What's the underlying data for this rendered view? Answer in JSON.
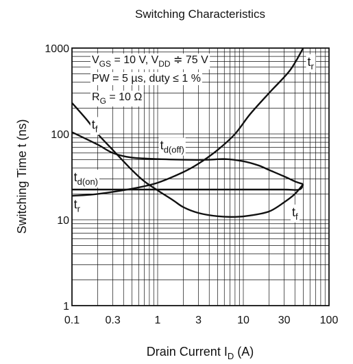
{
  "chart_data": {
    "type": "line",
    "title": "Switching Characteristics",
    "xlabel": {
      "main": "Drain Current  I",
      "sub": "D",
      "unit": "  (A)"
    },
    "ylabel": "Switching Time  t  (ns)",
    "x_scale": "log",
    "y_scale": "log",
    "xlim": [
      0.1,
      100
    ],
    "ylim": [
      1,
      1000
    ],
    "grid": true,
    "x_ticks": [
      0.1,
      0.3,
      1,
      3,
      10,
      30,
      100
    ],
    "x_tick_labels": [
      "0.1",
      "0.3",
      "1",
      "3",
      "10",
      "30",
      "100"
    ],
    "y_ticks": [
      1,
      10,
      100,
      1000
    ],
    "y_tick_labels": [
      "1",
      "10",
      "100",
      "1000"
    ],
    "conditions": [
      {
        "parts": [
          [
            "V",
            ""
          ],
          [
            "GS",
            "sub"
          ],
          [
            " = 10 V, V",
            ""
          ],
          [
            "DD",
            "sub"
          ],
          [
            " ≑ 75 V",
            ""
          ]
        ]
      },
      {
        "parts": [
          [
            "PW  = 5 µs, duty ≤ 1 %",
            ""
          ]
        ]
      },
      {
        "parts": [
          [
            "R",
            ""
          ],
          [
            "G",
            "sub"
          ],
          [
            " = 10 Ω",
            ""
          ]
        ]
      }
    ],
    "series": [
      {
        "name": "t_r",
        "labels": [
          {
            "main": "t",
            "sub": "r",
            "x": 0.105,
            "y": 13.5
          },
          {
            "main": "t",
            "sub": "r",
            "x": 56,
            "y": 620
          }
        ],
        "points": [
          [
            0.1,
            19
          ],
          [
            0.2,
            20
          ],
          [
            0.5,
            23
          ],
          [
            1,
            27
          ],
          [
            2,
            36
          ],
          [
            3,
            45
          ],
          [
            5,
            65
          ],
          [
            8,
            100
          ],
          [
            12,
            170
          ],
          [
            20,
            300
          ],
          [
            35,
            550
          ],
          [
            50,
            1000
          ]
        ]
      },
      {
        "name": "t_f",
        "labels": [
          {
            "main": "t",
            "sub": "f",
            "x": 0.17,
            "y": 115
          },
          {
            "main": "t",
            "sub": "f",
            "x": 37,
            "y": 11
          }
        ],
        "points": [
          [
            0.1,
            230
          ],
          [
            0.15,
            145
          ],
          [
            0.2,
            100
          ],
          [
            0.3,
            65
          ],
          [
            0.5,
            38
          ],
          [
            0.7,
            28
          ],
          [
            1,
            22
          ],
          [
            1.5,
            17
          ],
          [
            2,
            14
          ],
          [
            3,
            12
          ],
          [
            5,
            11
          ],
          [
            8,
            10.8
          ],
          [
            12,
            11.2
          ],
          [
            20,
            12.5
          ],
          [
            30,
            16
          ],
          [
            40,
            20
          ],
          [
            50,
            26
          ]
        ]
      },
      {
        "name": "t_d(off)",
        "labels": [
          {
            "main": "t",
            "sub": "d(off)",
            "x": 1.07,
            "y": 66
          }
        ],
        "points": [
          [
            0.1,
            105
          ],
          [
            0.2,
            75
          ],
          [
            0.3,
            60
          ],
          [
            0.5,
            53
          ],
          [
            1,
            51
          ],
          [
            2,
            50
          ],
          [
            4,
            50
          ],
          [
            6,
            51
          ],
          [
            10,
            48
          ],
          [
            15,
            43
          ],
          [
            20,
            38
          ],
          [
            30,
            32
          ],
          [
            40,
            28
          ],
          [
            50,
            26
          ]
        ]
      },
      {
        "name": "t_d(on)",
        "labels": [
          {
            "main": "t",
            "sub": "d(on)",
            "x": 0.105,
            "y": 28
          }
        ],
        "points": [
          [
            0.1,
            22.5
          ],
          [
            1,
            22.5
          ],
          [
            10,
            22.5
          ],
          [
            30,
            22.5
          ],
          [
            45,
            22.5
          ],
          [
            50,
            26
          ]
        ]
      }
    ]
  }
}
